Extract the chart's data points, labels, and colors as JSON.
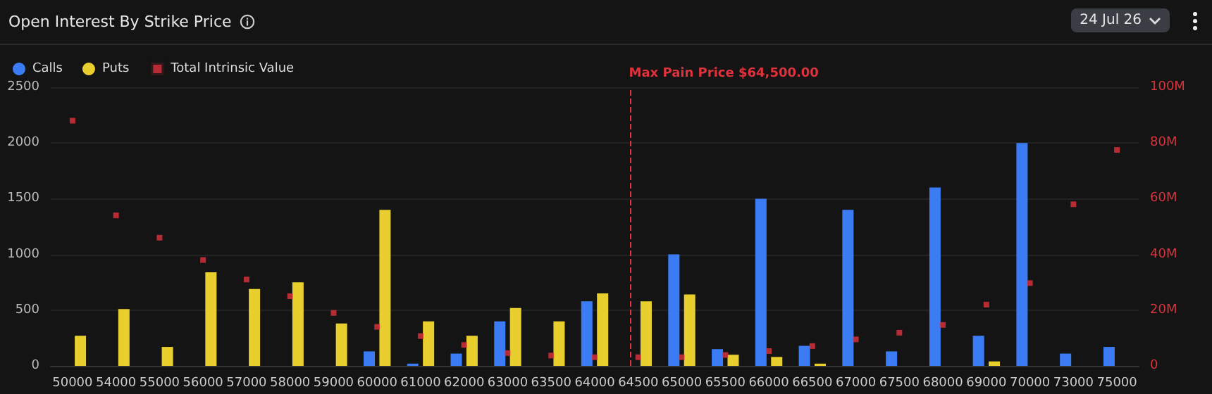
{
  "chart_data": {
    "type": "bar",
    "title": "Open Interest By Strike Price",
    "annotations": [
      "24 Jul 26"
    ],
    "categories": [
      "50000",
      "54000",
      "55000",
      "56000",
      "57000",
      "58000",
      "59000",
      "60000",
      "61000",
      "62000",
      "63000",
      "63500",
      "64000",
      "64500",
      "65000",
      "65500",
      "66000",
      "66500",
      "67000",
      "67500",
      "68000",
      "69000",
      "70000",
      "73000",
      "75000"
    ],
    "series": [
      {
        "name": "Calls",
        "color": "#3b7cf5",
        "values": [
          null,
          null,
          null,
          null,
          null,
          null,
          null,
          130,
          20,
          110,
          400,
          null,
          580,
          null,
          1000,
          150,
          1500,
          180,
          1400,
          130,
          1600,
          270,
          2000,
          110,
          170
        ]
      },
      {
        "name": "Puts",
        "color": "#e8cf2e",
        "values": [
          270,
          510,
          170,
          840,
          690,
          750,
          380,
          1400,
          400,
          270,
          520,
          400,
          650,
          580,
          640,
          100,
          80,
          20,
          null,
          null,
          null,
          40,
          null,
          null,
          null
        ]
      },
      {
        "name": "Total Intrinsic Value",
        "type": "scatter",
        "axis": "y2",
        "color": "#e0323c",
        "values": [
          88,
          54,
          46,
          38,
          31,
          25,
          19,
          14,
          10.7,
          7.5,
          4.6,
          3.7,
          3.1,
          3.1,
          3.1,
          3.9,
          5.3,
          7.1,
          9.5,
          11.9,
          14.7,
          22,
          29.7,
          58,
          77.5
        ]
      }
    ],
    "ylim": [
      0,
      2500
    ],
    "yticks": [
      0,
      500,
      1000,
      1500,
      2000,
      2500
    ],
    "y2lim": [
      0,
      100
    ],
    "y2ticks": [
      0,
      {
        "value": 20,
        "label": "20M"
      },
      {
        "value": 40,
        "label": "40M"
      },
      {
        "value": 60,
        "label": "60M"
      },
      {
        "value": 80,
        "label": "80M"
      },
      {
        "value": 100,
        "label": "100M"
      }
    ],
    "ref_lines": [
      {
        "axis": "x",
        "value": "64500",
        "label": "Max Pain Price $64,500.00",
        "color": "#e0323c",
        "line_style": "dashed"
      }
    ],
    "grid": "y",
    "legend": "top left",
    "marker": "square"
  }
}
